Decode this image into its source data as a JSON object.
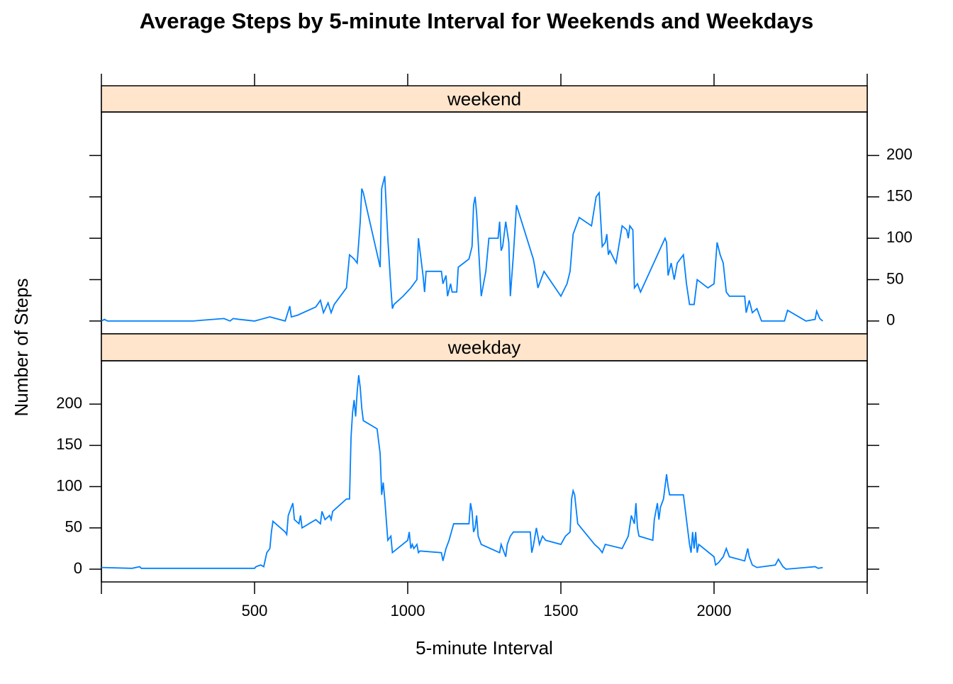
{
  "chart_data": {
    "type": "line",
    "title": "Average Steps by 5-minute Interval for Weekends and Weekdays",
    "x_label": "5-minute Interval",
    "y_label": "Number of Steps",
    "xlim": [
      0,
      2500
    ],
    "xticks": [
      500,
      1000,
      1500,
      2000
    ],
    "ylim": [
      -15.5,
      252.5
    ],
    "yticks": [
      0,
      50,
      100,
      150,
      200
    ],
    "series": [
      {
        "name": "weekend",
        "color": "#0080ff",
        "x": [
          0,
          10,
          20,
          100,
          300,
          330,
          400,
          420,
          430,
          450,
          500,
          520,
          550,
          600,
          615,
          620,
          640,
          700,
          715,
          725,
          740,
          750,
          760,
          800,
          810,
          825,
          835,
          845,
          850,
          855,
          870,
          910,
          915,
          925,
          935,
          945,
          950,
          955,
          985,
          1010,
          1030,
          1035,
          1040,
          1050,
          1055,
          1060,
          1110,
          1115,
          1125,
          1130,
          1140,
          1145,
          1160,
          1165,
          1200,
          1210,
          1215,
          1220,
          1225,
          1240,
          1255,
          1265,
          1295,
          1300,
          1305,
          1310,
          1320,
          1330,
          1335,
          1345,
          1355,
          1410,
          1415,
          1425,
          1445,
          1500,
          1520,
          1530,
          1540,
          1545,
          1560,
          1600,
          1615,
          1625,
          1635,
          1645,
          1650,
          1655,
          1660,
          1680,
          1700,
          1715,
          1720,
          1725,
          1735,
          1740,
          1750,
          1760,
          1840,
          1845,
          1850,
          1860,
          1870,
          1880,
          1900,
          1910,
          1920,
          1935,
          1945,
          1980,
          2000,
          2010,
          2020,
          2030,
          2040,
          2050,
          2100,
          2105,
          2115,
          2125,
          2140,
          2155,
          2200,
          2230,
          2240,
          2300,
          2330,
          2335,
          2345,
          2355
        ],
        "values": [
          0,
          2,
          0,
          0,
          0,
          1,
          3,
          0,
          3,
          2,
          0,
          2,
          5,
          0,
          18,
          5,
          7,
          17,
          25,
          10,
          22,
          10,
          20,
          40,
          80,
          75,
          70,
          120,
          160,
          155,
          130,
          65,
          160,
          175,
          100,
          40,
          15,
          20,
          30,
          40,
          50,
          100,
          85,
          55,
          35,
          60,
          60,
          45,
          55,
          30,
          45,
          35,
          35,
          65,
          75,
          90,
          140,
          150,
          130,
          30,
          60,
          100,
          100,
          120,
          85,
          90,
          120,
          95,
          30,
          80,
          140,
          75,
          65,
          40,
          60,
          30,
          45,
          60,
          105,
          110,
          125,
          115,
          150,
          155,
          90,
          95,
          105,
          80,
          85,
          70,
          115,
          110,
          100,
          115,
          110,
          40,
          45,
          35,
          100,
          95,
          55,
          70,
          50,
          70,
          80,
          45,
          20,
          20,
          50,
          40,
          45,
          95,
          80,
          70,
          35,
          30,
          30,
          10,
          25,
          10,
          15,
          0,
          0,
          0,
          13,
          0,
          2,
          12,
          3,
          0
        ]
      },
      {
        "name": "weekday",
        "color": "#0080ff",
        "x": [
          0,
          100,
          125,
          130,
          500,
          505,
          520,
          530,
          540,
          550,
          555,
          560,
          600,
          605,
          610,
          620,
          625,
          630,
          645,
          650,
          655,
          700,
          715,
          720,
          730,
          745,
          750,
          755,
          800,
          810,
          815,
          820,
          825,
          830,
          835,
          840,
          845,
          850,
          855,
          900,
          910,
          915,
          920,
          925,
          935,
          945,
          950,
          1000,
          1005,
          1010,
          1015,
          1020,
          1030,
          1035,
          1040,
          1110,
          1115,
          1125,
          1135,
          1150,
          1200,
          1205,
          1210,
          1215,
          1220,
          1225,
          1230,
          1240,
          1300,
          1305,
          1320,
          1325,
          1330,
          1335,
          1345,
          1400,
          1405,
          1410,
          1420,
          1430,
          1440,
          1450,
          1500,
          1515,
          1530,
          1535,
          1540,
          1545,
          1555,
          1610,
          1625,
          1635,
          1645,
          1700,
          1720,
          1730,
          1740,
          1745,
          1750,
          1755,
          1800,
          1805,
          1815,
          1820,
          1825,
          1835,
          1840,
          1845,
          1850,
          1855,
          1900,
          1915,
          1920,
          1925,
          1930,
          1935,
          1940,
          1945,
          1950,
          2000,
          2005,
          2015,
          2030,
          2040,
          2045,
          2050,
          2100,
          2110,
          2115,
          2125,
          2140,
          2200,
          2210,
          2225,
          2235,
          2300,
          2330,
          2340,
          2355
        ],
        "values": [
          2,
          1,
          3,
          1,
          1,
          3,
          5,
          3,
          20,
          25,
          45,
          58,
          45,
          42,
          65,
          75,
          80,
          60,
          55,
          65,
          50,
          60,
          55,
          70,
          60,
          65,
          60,
          70,
          85,
          85,
          160,
          190,
          205,
          185,
          215,
          235,
          220,
          195,
          180,
          170,
          140,
          90,
          105,
          85,
          35,
          40,
          20,
          35,
          45,
          25,
          30,
          25,
          30,
          20,
          22,
          20,
          10,
          25,
          35,
          55,
          55,
          80,
          70,
          45,
          50,
          65,
          40,
          30,
          20,
          30,
          15,
          30,
          35,
          40,
          45,
          45,
          20,
          28,
          50,
          30,
          40,
          35,
          30,
          40,
          45,
          85,
          95,
          90,
          55,
          30,
          25,
          20,
          30,
          25,
          40,
          65,
          55,
          80,
          50,
          40,
          35,
          60,
          80,
          60,
          75,
          85,
          100,
          115,
          100,
          90,
          90,
          45,
          30,
          20,
          45,
          25,
          45,
          20,
          30,
          15,
          5,
          8,
          15,
          25,
          20,
          15,
          10,
          25,
          15,
          5,
          2,
          5,
          12,
          3,
          0,
          2,
          3,
          1,
          2
        ]
      }
    ]
  }
}
